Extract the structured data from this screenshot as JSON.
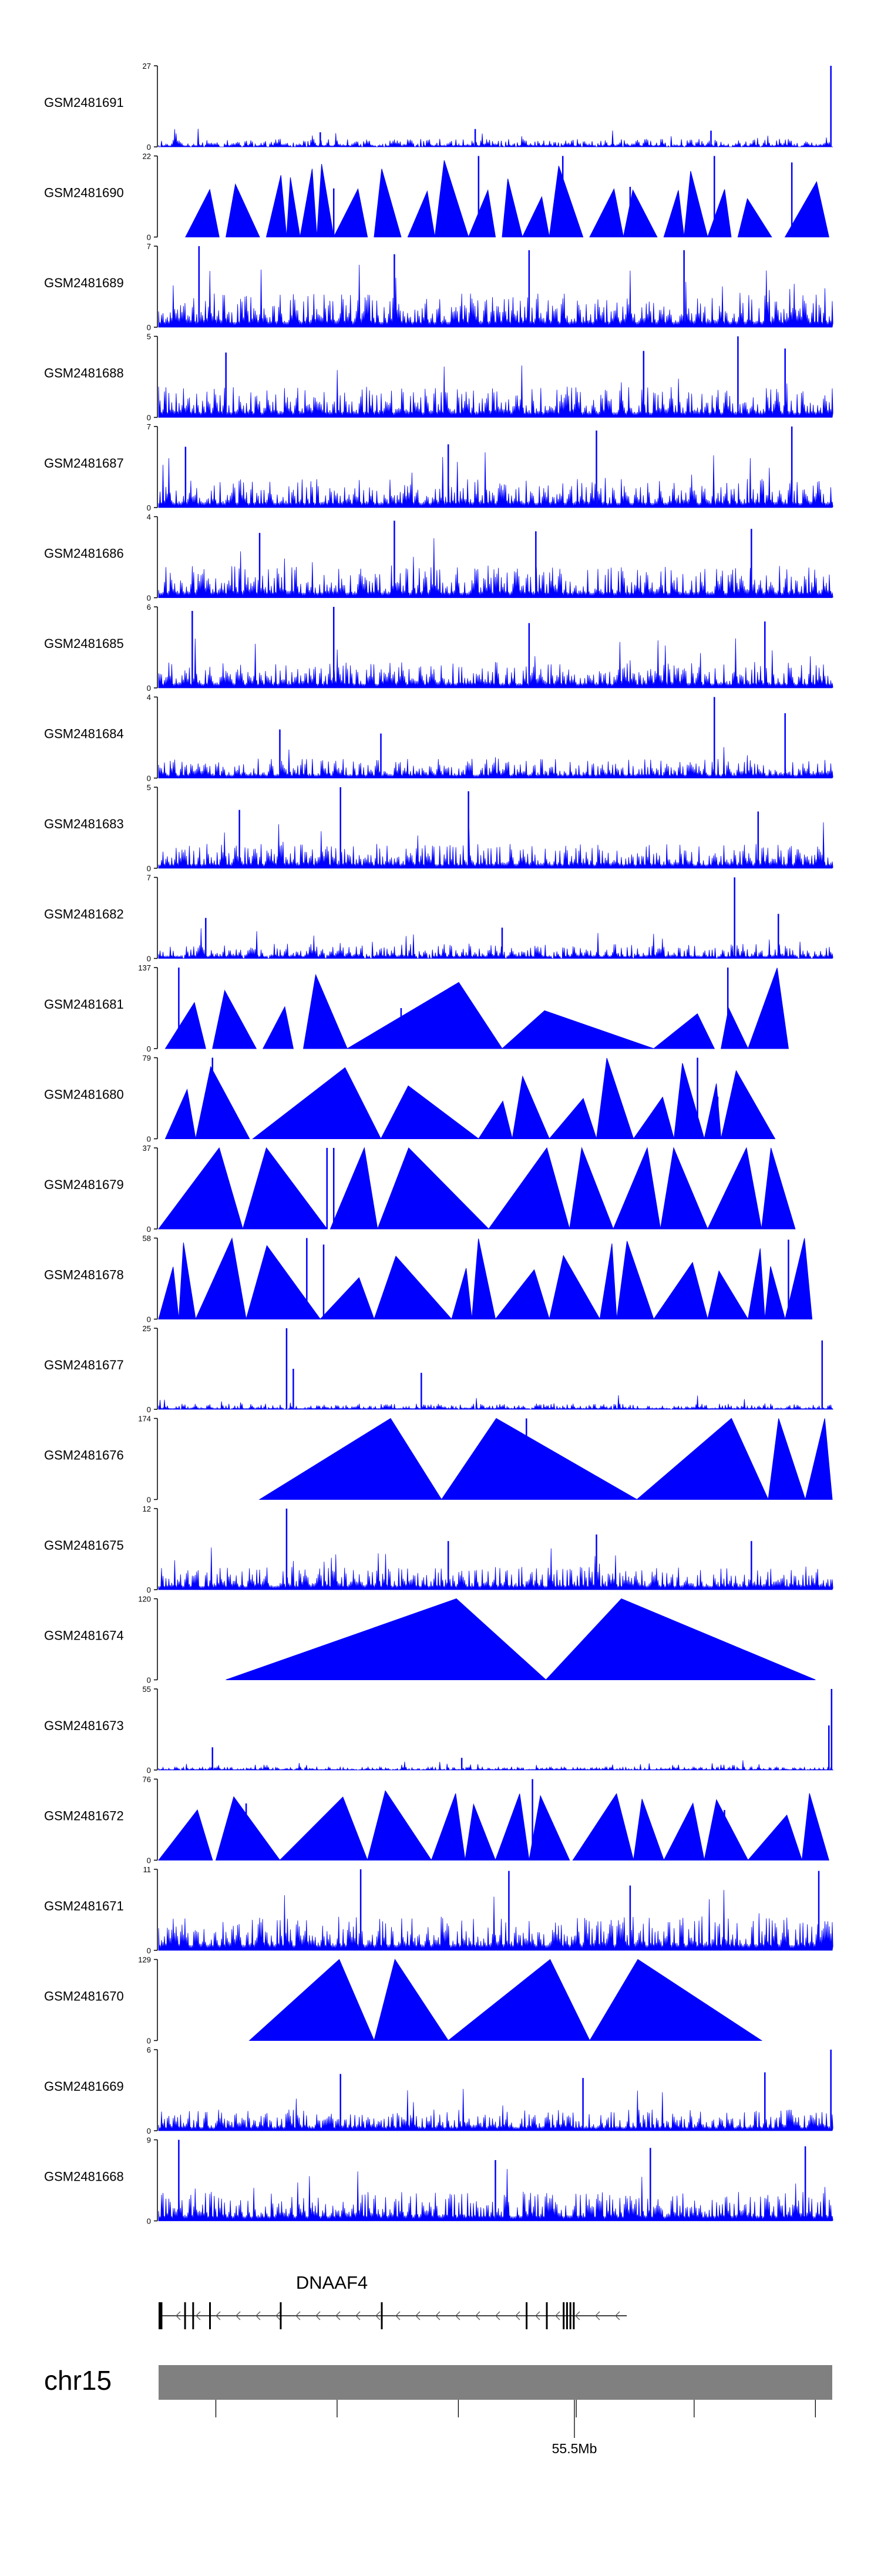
{
  "chromosome": {
    "label": "chr15",
    "locus_label": "55.5Mb",
    "color": "#808080"
  },
  "gene": {
    "name": "DNAAF4",
    "strand": "-"
  },
  "colors": {
    "signal": "#0000ff",
    "axis": "#000000",
    "gene": "#000000"
  },
  "chart_data": {
    "type": "area",
    "title": "",
    "xlabel": "",
    "x_tick_labels": [
      "55.5Mb"
    ],
    "tracks": [
      {
        "name": "GSM2481691",
        "ymax": 27,
        "style": "dense",
        "seed": 11,
        "level": 0.1,
        "sparse": 0.08,
        "peaks": [
          [
            0.998,
            1.0
          ],
          [
            0.47,
            0.22
          ],
          [
            0.82,
            0.2
          ],
          [
            0.24,
            0.18
          ]
        ]
      },
      {
        "name": "GSM2481690",
        "ymax": 22,
        "style": "triangles",
        "seed": 23,
        "level": 0.45,
        "sparse": 0.0,
        "peaks": [
          [
            0.475,
            1.0
          ],
          [
            0.825,
            1.0
          ],
          [
            0.6,
            1.0
          ],
          [
            0.26,
            0.6
          ],
          [
            0.94,
            0.92
          ],
          [
            0.7,
            0.62
          ]
        ]
      },
      {
        "name": "GSM2481689",
        "ymax": 7,
        "style": "dense",
        "seed": 37,
        "level": 0.42,
        "sparse": 0.0,
        "peaks": [
          [
            0.06,
            1.0
          ],
          [
            0.55,
            0.95
          ],
          [
            0.78,
            0.95
          ],
          [
            0.35,
            0.9
          ]
        ]
      },
      {
        "name": "GSM2481688",
        "ymax": 5,
        "style": "dense",
        "seed": 41,
        "level": 0.38,
        "sparse": 0.0,
        "peaks": [
          [
            0.86,
            1.0
          ],
          [
            0.1,
            0.8
          ],
          [
            0.72,
            0.82
          ],
          [
            0.93,
            0.85
          ]
        ]
      },
      {
        "name": "GSM2481687",
        "ymax": 7,
        "style": "dense",
        "seed": 53,
        "level": 0.36,
        "sparse": 0.0,
        "peaks": [
          [
            0.94,
            1.0
          ],
          [
            0.65,
            0.95
          ],
          [
            0.04,
            0.75
          ],
          [
            0.43,
            0.78
          ]
        ]
      },
      {
        "name": "GSM2481686",
        "ymax": 4,
        "style": "dense",
        "seed": 67,
        "level": 0.4,
        "sparse": 0.0,
        "peaks": [
          [
            0.35,
            0.95
          ],
          [
            0.88,
            0.85
          ],
          [
            0.15,
            0.8
          ],
          [
            0.56,
            0.82
          ]
        ]
      },
      {
        "name": "GSM2481685",
        "ymax": 6,
        "style": "dense",
        "seed": 71,
        "level": 0.32,
        "sparse": 0.0,
        "peaks": [
          [
            0.26,
            1.0
          ],
          [
            0.55,
            0.8
          ],
          [
            0.9,
            0.82
          ],
          [
            0.05,
            0.95
          ]
        ]
      },
      {
        "name": "GSM2481684",
        "ymax": 4,
        "style": "dense",
        "seed": 83,
        "level": 0.24,
        "sparse": 0.0,
        "peaks": [
          [
            0.825,
            1.0
          ],
          [
            0.93,
            0.8
          ],
          [
            0.18,
            0.6
          ],
          [
            0.33,
            0.55
          ]
        ]
      },
      {
        "name": "GSM2481683",
        "ymax": 5,
        "style": "dense",
        "seed": 97,
        "level": 0.3,
        "sparse": 0.0,
        "peaks": [
          [
            0.27,
            1.0
          ],
          [
            0.46,
            0.95
          ],
          [
            0.12,
            0.72
          ],
          [
            0.89,
            0.7
          ]
        ]
      },
      {
        "name": "GSM2481682",
        "ymax": 7,
        "style": "dense",
        "seed": 101,
        "level": 0.18,
        "sparse": 0.05,
        "peaks": [
          [
            0.855,
            1.0
          ],
          [
            0.92,
            0.55
          ],
          [
            0.07,
            0.5
          ],
          [
            0.51,
            0.38
          ]
        ]
      },
      {
        "name": "GSM2481681",
        "ymax": 137,
        "style": "triangles",
        "seed": 113,
        "level": 0.4,
        "sparse": 0.0,
        "peaks": [
          [
            0.03,
            1.0
          ],
          [
            0.845,
            1.0
          ],
          [
            0.36,
            0.5
          ]
        ]
      },
      {
        "name": "GSM2481680",
        "ymax": 79,
        "style": "triangles",
        "seed": 127,
        "level": 0.45,
        "sparse": 0.0,
        "peaks": [
          [
            0.08,
            1.0
          ],
          [
            0.8,
            1.0
          ],
          [
            0.83,
            0.52
          ]
        ]
      },
      {
        "name": "GSM2481679",
        "ymax": 37,
        "style": "triangles",
        "seed": 131,
        "level": 1.0,
        "sparse": 0.0,
        "peaks": [
          [
            0.25,
            1.0
          ],
          [
            0.26,
            1.0
          ]
        ]
      },
      {
        "name": "GSM2481678",
        "ymax": 58,
        "style": "triangles",
        "seed": 139,
        "level": 0.5,
        "sparse": 0.0,
        "peaks": [
          [
            0.22,
            1.0
          ],
          [
            0.245,
            0.92
          ],
          [
            0.475,
            0.92
          ],
          [
            0.935,
            0.98
          ]
        ]
      },
      {
        "name": "GSM2481677",
        "ymax": 25,
        "style": "dense",
        "seed": 149,
        "level": 0.07,
        "sparse": 0.04,
        "peaks": [
          [
            0.19,
            1.0
          ],
          [
            0.2,
            0.5
          ],
          [
            0.985,
            0.85
          ],
          [
            0.39,
            0.45
          ]
        ]
      },
      {
        "name": "GSM2481676",
        "ymax": 174,
        "style": "triangles",
        "seed": 151,
        "level": 1.0,
        "sparse": 0.0,
        "peaks": [
          [
            0.546,
            1.0
          ]
        ]
      },
      {
        "name": "GSM2481675",
        "ymax": 12,
        "style": "dense",
        "seed": 163,
        "level": 0.28,
        "sparse": 0.0,
        "peaks": [
          [
            0.19,
            1.0
          ],
          [
            0.43,
            0.6
          ],
          [
            0.65,
            0.68
          ],
          [
            0.88,
            0.6
          ]
        ]
      },
      {
        "name": "GSM2481674",
        "ymax": 120,
        "style": "triangles",
        "seed": 173,
        "level": 1.0,
        "sparse": 0.0,
        "peaks": []
      },
      {
        "name": "GSM2481673",
        "ymax": 55,
        "style": "dense",
        "seed": 181,
        "level": 0.04,
        "sparse": 0.05,
        "peaks": [
          [
            0.999,
            1.0
          ],
          [
            0.995,
            0.55
          ],
          [
            0.08,
            0.28
          ],
          [
            0.45,
            0.15
          ]
        ]
      },
      {
        "name": "GSM2481672",
        "ymax": 76,
        "style": "triangles",
        "seed": 191,
        "level": 0.45,
        "sparse": 0.0,
        "peaks": [
          [
            0.555,
            1.0
          ],
          [
            0.13,
            0.7
          ],
          [
            0.84,
            0.62
          ]
        ]
      },
      {
        "name": "GSM2481671",
        "ymax": 11,
        "style": "dense",
        "seed": 193,
        "level": 0.42,
        "sparse": 0.0,
        "peaks": [
          [
            0.3,
            1.0
          ],
          [
            0.52,
            0.98
          ],
          [
            0.7,
            0.8
          ],
          [
            0.98,
            0.98
          ]
        ]
      },
      {
        "name": "GSM2481670",
        "ymax": 129,
        "style": "triangles",
        "seed": 197,
        "level": 1.0,
        "sparse": 0.0,
        "peaks": []
      },
      {
        "name": "GSM2481669",
        "ymax": 6,
        "style": "dense",
        "seed": 211,
        "level": 0.26,
        "sparse": 0.0,
        "peaks": [
          [
            0.998,
            1.0
          ],
          [
            0.27,
            0.7
          ],
          [
            0.63,
            0.65
          ],
          [
            0.9,
            0.72
          ]
        ]
      },
      {
        "name": "GSM2481668",
        "ymax": 9,
        "style": "dense",
        "seed": 223,
        "level": 0.36,
        "sparse": 0.0,
        "peaks": [
          [
            0.03,
            1.0
          ],
          [
            0.73,
            0.9
          ],
          [
            0.96,
            0.92
          ],
          [
            0.5,
            0.75
          ]
        ]
      }
    ]
  },
  "triangle_shapes": {
    "GSM2481690": [
      [
        0.04,
        0.09
      ],
      [
        0.1,
        0.15
      ],
      [
        0.16,
        0.19
      ],
      [
        0.19,
        0.21
      ],
      [
        0.21,
        0.235
      ],
      [
        0.235,
        0.26
      ],
      [
        0.26,
        0.31
      ],
      [
        0.32,
        0.36
      ],
      [
        0.37,
        0.41
      ],
      [
        0.41,
        0.46
      ],
      [
        0.46,
        0.5
      ],
      [
        0.51,
        0.54
      ],
      [
        0.54,
        0.58
      ],
      [
        0.58,
        0.63
      ],
      [
        0.64,
        0.69
      ],
      [
        0.69,
        0.74
      ],
      [
        0.75,
        0.78
      ],
      [
        0.78,
        0.815
      ],
      [
        0.815,
        0.85
      ],
      [
        0.86,
        0.91
      ],
      [
        0.93,
        0.995
      ]
    ],
    "GSM2481681": [
      [
        0.01,
        0.07
      ],
      [
        0.08,
        0.145
      ],
      [
        0.155,
        0.2
      ],
      [
        0.215,
        0.28
      ],
      [
        0.28,
        0.51
      ],
      [
        0.51,
        0.735
      ],
      [
        0.735,
        0.825
      ],
      [
        0.835,
        0.875
      ],
      [
        0.875,
        0.935
      ]
    ],
    "GSM2481680": [
      [
        0.01,
        0.055
      ],
      [
        0.055,
        0.135
      ],
      [
        0.14,
        0.33
      ],
      [
        0.33,
        0.475
      ],
      [
        0.475,
        0.525
      ],
      [
        0.525,
        0.58
      ],
      [
        0.58,
        0.65
      ],
      [
        0.65,
        0.705
      ],
      [
        0.705,
        0.765
      ],
      [
        0.765,
        0.81
      ],
      [
        0.81,
        0.835
      ],
      [
        0.835,
        0.915
      ]
    ],
    "GSM2481679": [
      [
        0.0,
        0.125
      ],
      [
        0.125,
        0.25
      ],
      [
        0.255,
        0.325
      ],
      [
        0.325,
        0.49
      ],
      [
        0.49,
        0.61
      ],
      [
        0.61,
        0.675
      ],
      [
        0.675,
        0.745
      ],
      [
        0.745,
        0.815
      ],
      [
        0.815,
        0.895
      ],
      [
        0.895,
        0.945
      ]
    ],
    "GSM2481678": [
      [
        0.0,
        0.03
      ],
      [
        0.03,
        0.055
      ],
      [
        0.055,
        0.13
      ],
      [
        0.13,
        0.24
      ],
      [
        0.24,
        0.32
      ],
      [
        0.32,
        0.435
      ],
      [
        0.435,
        0.465
      ],
      [
        0.465,
        0.5
      ],
      [
        0.5,
        0.58
      ],
      [
        0.58,
        0.655
      ],
      [
        0.655,
        0.68
      ],
      [
        0.68,
        0.735
      ],
      [
        0.735,
        0.815
      ],
      [
        0.815,
        0.875
      ],
      [
        0.875,
        0.9
      ],
      [
        0.9,
        0.93
      ],
      [
        0.93,
        0.97
      ]
    ],
    "GSM2481676": [
      [
        0.15,
        0.42
      ],
      [
        0.42,
        0.71
      ],
      [
        0.71,
        0.905
      ],
      [
        0.905,
        0.96
      ],
      [
        0.96,
        1.0
      ]
    ],
    "GSM2481674": [
      [
        0.1,
        0.575
      ],
      [
        0.575,
        0.975
      ]
    ],
    "GSM2481672": [
      [
        0.0,
        0.08
      ],
      [
        0.085,
        0.18
      ],
      [
        0.18,
        0.31
      ],
      [
        0.31,
        0.405
      ],
      [
        0.405,
        0.455
      ],
      [
        0.455,
        0.5
      ],
      [
        0.5,
        0.55
      ],
      [
        0.55,
        0.61
      ],
      [
        0.615,
        0.705
      ],
      [
        0.705,
        0.75
      ],
      [
        0.75,
        0.81
      ],
      [
        0.81,
        0.875
      ],
      [
        0.875,
        0.955
      ],
      [
        0.955,
        0.995
      ]
    ],
    "GSM2481670": [
      [
        0.135,
        0.32
      ],
      [
        0.32,
        0.43
      ],
      [
        0.43,
        0.64
      ],
      [
        0.64,
        0.895
      ]
    ]
  },
  "gene_model": {
    "exons": [
      0.0,
      0.003,
      0.038,
      0.05,
      0.075,
      0.18,
      0.33,
      0.545,
      0.575,
      0.6,
      0.605,
      0.61,
      0.615
    ],
    "start": 0.0,
    "end": 0.695
  },
  "axis_ticks": [
    0.085,
    0.265,
    0.445,
    0.62,
    0.795,
    0.975
  ]
}
